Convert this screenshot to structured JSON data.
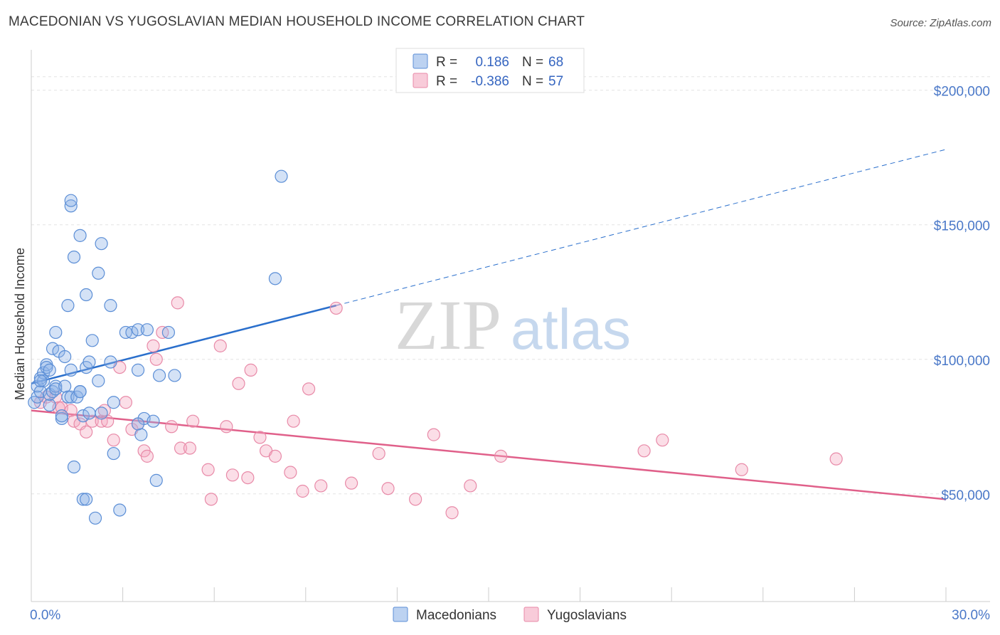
{
  "header": {
    "title": "MACEDONIAN VS YUGOSLAVIAN MEDIAN HOUSEHOLD INCOME CORRELATION CHART",
    "source": "Source: ZipAtlas.com"
  },
  "watermark": {
    "zip": "ZIP",
    "atlas": "atlas"
  },
  "chart_data": {
    "type": "scatter",
    "xlabel": "",
    "ylabel": "Median Household Income",
    "xlim": [
      0,
      30
    ],
    "ylim": [
      10000,
      215000
    ],
    "x_tick_labels": [
      "0.0%",
      "30.0%"
    ],
    "y_ticks": [
      50000,
      100000,
      150000,
      200000
    ],
    "y_tick_labels": [
      "$50,000",
      "$100,000",
      "$150,000",
      "$200,000"
    ],
    "grid": "horizontal dashed",
    "legend_top": [
      {
        "r_label": "R =",
        "r_value": "0.186",
        "n_label": "N =",
        "n_value": "68",
        "color": "#8fb4e8"
      },
      {
        "r_label": "R =",
        "r_value": "-0.386",
        "n_label": "N =",
        "n_value": "57",
        "color": "#f4a8c0"
      }
    ],
    "legend_bottom": [
      "Macedonians",
      "Yugoslavians"
    ],
    "series": [
      {
        "name": "Macedonians",
        "color": "#8fb4e8",
        "stroke": "#5b8ed6",
        "trend": {
          "x0": 0,
          "y0": 91000,
          "x1": 10,
          "y1": 120000,
          "dashed_to_x": 30,
          "dashed_to_y": 178000,
          "color": "#2a6fcc"
        },
        "points": [
          [
            0.1,
            84000
          ],
          [
            0.2,
            90000
          ],
          [
            0.2,
            86000
          ],
          [
            0.3,
            93000
          ],
          [
            0.3,
            88000
          ],
          [
            0.4,
            95000
          ],
          [
            0.4,
            92000
          ],
          [
            0.5,
            98000
          ],
          [
            0.5,
            97000
          ],
          [
            0.6,
            83000
          ],
          [
            0.6,
            87000
          ],
          [
            0.7,
            104000
          ],
          [
            0.7,
            88000
          ],
          [
            0.8,
            90000
          ],
          [
            0.8,
            89000
          ],
          [
            0.8,
            110000
          ],
          [
            0.9,
            103000
          ],
          [
            1.0,
            78000
          ],
          [
            1.1,
            101000
          ],
          [
            1.1,
            90000
          ],
          [
            1.2,
            120000
          ],
          [
            1.2,
            86000
          ],
          [
            1.3,
            86000
          ],
          [
            1.3,
            96000
          ],
          [
            1.3,
            157000
          ],
          [
            1.3,
            159000
          ],
          [
            1.4,
            60000
          ],
          [
            1.4,
            138000
          ],
          [
            1.5,
            86000
          ],
          [
            1.6,
            88000
          ],
          [
            1.6,
            146000
          ],
          [
            1.6,
            88000
          ],
          [
            1.7,
            79000
          ],
          [
            1.7,
            48000
          ],
          [
            1.8,
            48000
          ],
          [
            1.8,
            97000
          ],
          [
            1.8,
            124000
          ],
          [
            1.9,
            80000
          ],
          [
            1.9,
            99000
          ],
          [
            2.0,
            107000
          ],
          [
            2.1,
            41000
          ],
          [
            2.2,
            92000
          ],
          [
            2.2,
            132000
          ],
          [
            2.3,
            143000
          ],
          [
            2.3,
            80000
          ],
          [
            2.6,
            99000
          ],
          [
            2.6,
            120000
          ],
          [
            2.7,
            65000
          ],
          [
            2.7,
            84000
          ],
          [
            2.9,
            44000
          ],
          [
            3.1,
            110000
          ],
          [
            3.3,
            110000
          ],
          [
            3.5,
            111000
          ],
          [
            3.5,
            96000
          ],
          [
            3.6,
            72000
          ],
          [
            3.7,
            78000
          ],
          [
            3.8,
            111000
          ],
          [
            4.0,
            77000
          ],
          [
            4.1,
            55000
          ],
          [
            4.2,
            94000
          ],
          [
            4.5,
            110000
          ],
          [
            4.7,
            94000
          ],
          [
            8.0,
            130000
          ],
          [
            8.2,
            168000
          ],
          [
            0.3,
            92000
          ],
          [
            0.6,
            96000
          ],
          [
            1.0,
            79000
          ],
          [
            3.5,
            76000
          ]
        ]
      },
      {
        "name": "Yugoslavians",
        "color": "#f4a8c0",
        "stroke": "#e88aa8",
        "trend": {
          "x0": 0,
          "y0": 81000,
          "x1": 30,
          "y1": 48000,
          "color": "#e0608a"
        },
        "points": [
          [
            0.3,
            84000
          ],
          [
            0.5,
            86000
          ],
          [
            0.8,
            86000
          ],
          [
            0.9,
            82000
          ],
          [
            1.0,
            82000
          ],
          [
            1.3,
            81000
          ],
          [
            1.4,
            77000
          ],
          [
            1.6,
            76000
          ],
          [
            1.8,
            73000
          ],
          [
            2.0,
            77000
          ],
          [
            2.3,
            77000
          ],
          [
            2.4,
            81000
          ],
          [
            2.5,
            77000
          ],
          [
            2.7,
            70000
          ],
          [
            2.9,
            97000
          ],
          [
            3.1,
            84000
          ],
          [
            3.3,
            74000
          ],
          [
            3.5,
            76000
          ],
          [
            3.7,
            66000
          ],
          [
            3.8,
            64000
          ],
          [
            4.0,
            105000
          ],
          [
            4.1,
            100000
          ],
          [
            4.3,
            110000
          ],
          [
            4.6,
            75000
          ],
          [
            4.8,
            121000
          ],
          [
            4.9,
            67000
          ],
          [
            5.2,
            67000
          ],
          [
            5.3,
            77000
          ],
          [
            5.8,
            59000
          ],
          [
            5.9,
            48000
          ],
          [
            6.2,
            105000
          ],
          [
            6.4,
            75000
          ],
          [
            6.6,
            57000
          ],
          [
            6.8,
            91000
          ],
          [
            7.1,
            56000
          ],
          [
            7.2,
            96000
          ],
          [
            7.5,
            71000
          ],
          [
            7.7,
            66000
          ],
          [
            8.0,
            64000
          ],
          [
            8.5,
            58000
          ],
          [
            8.6,
            77000
          ],
          [
            8.9,
            51000
          ],
          [
            9.1,
            89000
          ],
          [
            9.5,
            53000
          ],
          [
            10.0,
            119000
          ],
          [
            10.5,
            54000
          ],
          [
            11.4,
            65000
          ],
          [
            11.7,
            52000
          ],
          [
            12.6,
            48000
          ],
          [
            13.2,
            72000
          ],
          [
            13.8,
            43000
          ],
          [
            14.4,
            53000
          ],
          [
            15.4,
            64000
          ],
          [
            20.1,
            66000
          ],
          [
            20.7,
            70000
          ],
          [
            23.3,
            59000
          ],
          [
            26.4,
            63000
          ]
        ]
      }
    ]
  }
}
